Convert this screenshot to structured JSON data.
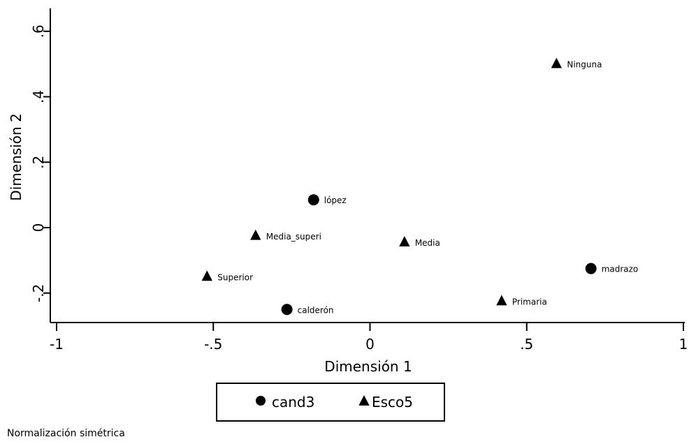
{
  "chart_data": {
    "type": "scatter",
    "xlabel": "Dimensión 1",
    "ylabel": "Dimensión 2",
    "xlim": [
      -1.02,
      1.0
    ],
    "ylim": [
      -0.29,
      0.67
    ],
    "x_ticks": [
      {
        "value": -1,
        "label": "-1"
      },
      {
        "value": -0.5,
        "label": "-.5"
      },
      {
        "value": 0,
        "label": "0"
      },
      {
        "value": 0.5,
        "label": ".5"
      },
      {
        "value": 1,
        "label": "1"
      }
    ],
    "y_ticks": [
      {
        "value": -0.2,
        "label": "-.2"
      },
      {
        "value": 0,
        "label": "0"
      },
      {
        "value": 0.2,
        "label": ".2"
      },
      {
        "value": 0.4,
        "label": ".4"
      },
      {
        "value": 0.6,
        "label": ".6"
      }
    ],
    "series": [
      {
        "name": "cand3",
        "marker": "circle",
        "points": [
          {
            "label": "lópez",
            "x": -0.18,
            "y": 0.085
          },
          {
            "label": "calderón",
            "x": -0.265,
            "y": -0.25
          },
          {
            "label": "madrazo",
            "x": 0.705,
            "y": -0.125
          }
        ]
      },
      {
        "name": "Esco5",
        "marker": "triangle",
        "points": [
          {
            "label": "Ninguna",
            "x": 0.595,
            "y": 0.5
          },
          {
            "label": "Media_superi",
            "x": -0.365,
            "y": -0.025
          },
          {
            "label": "Media",
            "x": 0.11,
            "y": -0.045
          },
          {
            "label": "Superior",
            "x": -0.52,
            "y": -0.15
          },
          {
            "label": "Primaria",
            "x": 0.42,
            "y": -0.225
          }
        ]
      }
    ],
    "legend": {
      "placement": "bottom"
    },
    "grid": false,
    "note": "Normalización simétrica",
    "colors": {
      "marker": "#000000",
      "axis": "#000000",
      "background": "#ffffff"
    }
  }
}
